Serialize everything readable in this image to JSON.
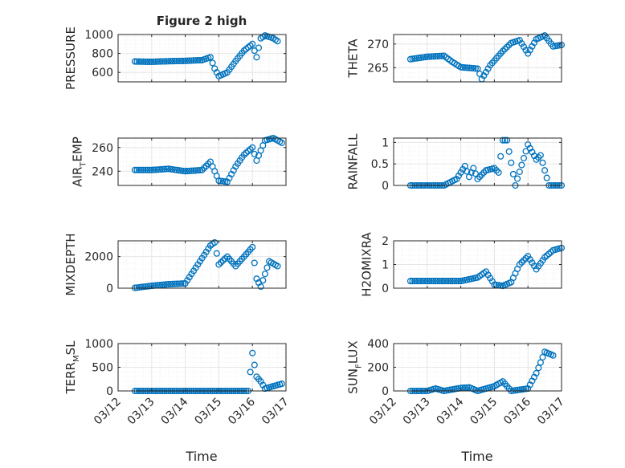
{
  "colors": {
    "marker": "#0072BD",
    "axis": "#262626",
    "grid": "#e6e6e6",
    "minorgrid": "#f0f0f0"
  },
  "chart_data": {
    "type": "scatter",
    "title": "Figure 2 high",
    "xlabel": "Time",
    "x_ticks": [
      "03/12",
      "03/13",
      "03/14",
      "03/15",
      "03/16",
      "03/17"
    ],
    "xlim": [
      "03/12",
      "03/17"
    ],
    "x_hours_note_unused": null,
    "grid": true,
    "marker": "open-circle",
    "panels": [
      {
        "id": "pressure",
        "position": "row1-left",
        "ylabel": {
          "main": "PRESSURE",
          "sub": "",
          "tail": ""
        },
        "ylim": [
          500,
          1000
        ],
        "yticks": [
          600,
          800,
          1000
        ],
        "series": [
          [
            "03/12 12:00",
            715
          ],
          [
            "03/13 00:00",
            712
          ],
          [
            "03/13 12:00",
            718
          ],
          [
            "03/14 00:00",
            722
          ],
          [
            "03/14 12:00",
            730
          ],
          [
            "03/14 18:00",
            760
          ],
          [
            "03/14 21:00",
            640
          ],
          [
            "03/15 00:00",
            560
          ],
          [
            "03/15 06:00",
            600
          ],
          [
            "03/15 12:00",
            720
          ],
          [
            "03/15 18:00",
            830
          ],
          [
            "03/16 00:00",
            900
          ],
          [
            "03/16 03:00",
            760
          ],
          [
            "03/16 06:00",
            960
          ],
          [
            "03/16 09:00",
            990
          ],
          [
            "03/16 15:00",
            960
          ],
          [
            "03/16 18:00",
            930
          ]
        ]
      },
      {
        "id": "theta",
        "position": "row1-right",
        "ylabel": {
          "main": "THETA",
          "sub": "",
          "tail": ""
        },
        "ylim": [
          262,
          272
        ],
        "yticks": [
          265,
          270
        ],
        "series": [
          [
            "03/12 12:00",
            266.8
          ],
          [
            "03/13 00:00",
            267.3
          ],
          [
            "03/13 12:00",
            267.5
          ],
          [
            "03/13 18:00",
            266.2
          ],
          [
            "03/14 00:00",
            265.1
          ],
          [
            "03/14 12:00",
            264.8
          ],
          [
            "03/14 15:00",
            262.6
          ],
          [
            "03/14 21:00",
            265.5
          ],
          [
            "03/15 06:00",
            268.5
          ],
          [
            "03/15 12:00",
            270.2
          ],
          [
            "03/15 18:00",
            270.8
          ],
          [
            "03/16 00:00",
            268.0
          ],
          [
            "03/16 06:00",
            271.0
          ],
          [
            "03/16 12:00",
            271.8
          ],
          [
            "03/16 18:00",
            269.5
          ],
          [
            "03/17 00:00",
            269.8
          ]
        ]
      },
      {
        "id": "air_temp",
        "position": "row2-left",
        "ylabel": {
          "main": "AIR",
          "sub": "T",
          "tail": "EMP"
        },
        "ylim": [
          228,
          268
        ],
        "yticks": [
          240,
          260
        ],
        "series": [
          [
            "03/12 12:00",
            241
          ],
          [
            "03/13 00:00",
            241
          ],
          [
            "03/13 12:00",
            242
          ],
          [
            "03/14 00:00",
            240
          ],
          [
            "03/14 12:00",
            241
          ],
          [
            "03/14 18:00",
            248
          ],
          [
            "03/15 00:00",
            232
          ],
          [
            "03/15 06:00",
            231
          ],
          [
            "03/15 12:00",
            244
          ],
          [
            "03/15 18:00",
            254
          ],
          [
            "03/16 00:00",
            260
          ],
          [
            "03/16 03:00",
            249
          ],
          [
            "03/16 09:00",
            266
          ],
          [
            "03/16 15:00",
            268
          ],
          [
            "03/16 21:00",
            264
          ]
        ]
      },
      {
        "id": "rainfall",
        "position": "row2-right",
        "ylabel": {
          "main": "RAINFALL",
          "sub": "",
          "tail": ""
        },
        "ylim": [
          0,
          1.1
        ],
        "yticks": [
          0,
          0.5,
          1
        ],
        "series": [
          [
            "03/12 12:00",
            0
          ],
          [
            "03/13 00:00",
            0
          ],
          [
            "03/13 12:00",
            0
          ],
          [
            "03/13 21:00",
            0.15
          ],
          [
            "03/14 00:00",
            0.3
          ],
          [
            "03/14 03:00",
            0.45
          ],
          [
            "03/14 06:00",
            0.2
          ],
          [
            "03/14 09:00",
            0.4
          ],
          [
            "03/14 12:00",
            0.15
          ],
          [
            "03/14 18:00",
            0.35
          ],
          [
            "03/15 00:00",
            0.4
          ],
          [
            "03/15 03:00",
            0.3
          ],
          [
            "03/15 06:00",
            1.05
          ],
          [
            "03/15 09:00",
            1.05
          ],
          [
            "03/15 15:00",
            0
          ],
          [
            "03/16 00:00",
            0.95
          ],
          [
            "03/16 06:00",
            0.6
          ],
          [
            "03/16 09:00",
            0.7
          ],
          [
            "03/16 15:00",
            0
          ],
          [
            "03/17 00:00",
            0
          ]
        ]
      },
      {
        "id": "mixdepth",
        "position": "row3-left",
        "ylabel": {
          "main": "MIXDEPTH",
          "sub": "",
          "tail": ""
        },
        "ylim": [
          0,
          3000
        ],
        "yticks": [
          0,
          2000
        ],
        "series": [
          [
            "03/12 12:00",
            20
          ],
          [
            "03/13 00:00",
            150
          ],
          [
            "03/13 12:00",
            250
          ],
          [
            "03/14 00:00",
            300
          ],
          [
            "03/14 12:00",
            1900
          ],
          [
            "03/14 18:00",
            2700
          ],
          [
            "03/14 21:00",
            2900
          ],
          [
            "03/15 00:00",
            1500
          ],
          [
            "03/15 06:00",
            2000
          ],
          [
            "03/15 12:00",
            1400
          ],
          [
            "03/15 18:00",
            2000
          ],
          [
            "03/16 00:00",
            2600
          ],
          [
            "03/16 03:00",
            600
          ],
          [
            "03/16 06:00",
            100
          ],
          [
            "03/16 09:00",
            900
          ],
          [
            "03/16 12:00",
            1700
          ],
          [
            "03/16 18:00",
            1400
          ]
        ]
      },
      {
        "id": "h2omixra",
        "position": "row3-right",
        "ylabel": {
          "main": "H2OMIXRA",
          "sub": "",
          "tail": ""
        },
        "ylim": [
          0,
          2
        ],
        "yticks": [
          0,
          1,
          2
        ],
        "series": [
          [
            "03/12 12:00",
            0.3
          ],
          [
            "03/13 00:00",
            0.3
          ],
          [
            "03/13 12:00",
            0.3
          ],
          [
            "03/14 00:00",
            0.3
          ],
          [
            "03/14 12:00",
            0.45
          ],
          [
            "03/14 18:00",
            0.7
          ],
          [
            "03/15 00:00",
            0.15
          ],
          [
            "03/15 06:00",
            0.1
          ],
          [
            "03/15 12:00",
            0.25
          ],
          [
            "03/15 18:00",
            1.0
          ],
          [
            "03/16 00:00",
            1.35
          ],
          [
            "03/16 06:00",
            0.8
          ],
          [
            "03/16 12:00",
            1.3
          ],
          [
            "03/16 18:00",
            1.6
          ],
          [
            "03/17 00:00",
            1.7
          ]
        ]
      },
      {
        "id": "terr_msl",
        "position": "row4-left",
        "ylabel": {
          "main": "TERR",
          "sub": "M",
          "tail": "SL"
        },
        "ylim": [
          0,
          1000
        ],
        "yticks": [
          0,
          500,
          1000
        ],
        "series": [
          [
            "03/12 12:00",
            0
          ],
          [
            "03/13 00:00",
            0
          ],
          [
            "03/14 00:00",
            0
          ],
          [
            "03/15 00:00",
            0
          ],
          [
            "03/15 21:00",
            0
          ],
          [
            "03/16 00:00",
            800
          ],
          [
            "03/16 03:00",
            300
          ],
          [
            "03/16 06:00",
            200
          ],
          [
            "03/16 09:00",
            50
          ],
          [
            "03/16 15:00",
            100
          ],
          [
            "03/16 21:00",
            150
          ]
        ]
      },
      {
        "id": "sun_flux",
        "position": "row4-right",
        "ylabel": {
          "main": "SUN",
          "sub": "F",
          "tail": "LUX"
        },
        "ylim": [
          0,
          400
        ],
        "yticks": [
          0,
          200,
          400
        ],
        "series": [
          [
            "03/12 12:00",
            0
          ],
          [
            "03/13 00:00",
            0
          ],
          [
            "03/13 06:00",
            20
          ],
          [
            "03/13 12:00",
            0
          ],
          [
            "03/14 00:00",
            25
          ],
          [
            "03/14 06:00",
            30
          ],
          [
            "03/14 12:00",
            0
          ],
          [
            "03/15 00:00",
            40
          ],
          [
            "03/15 06:00",
            80
          ],
          [
            "03/15 12:00",
            0
          ],
          [
            "03/16 00:00",
            20
          ],
          [
            "03/16 06:00",
            150
          ],
          [
            "03/16 12:00",
            330
          ],
          [
            "03/16 18:00",
            300
          ]
        ]
      }
    ]
  }
}
